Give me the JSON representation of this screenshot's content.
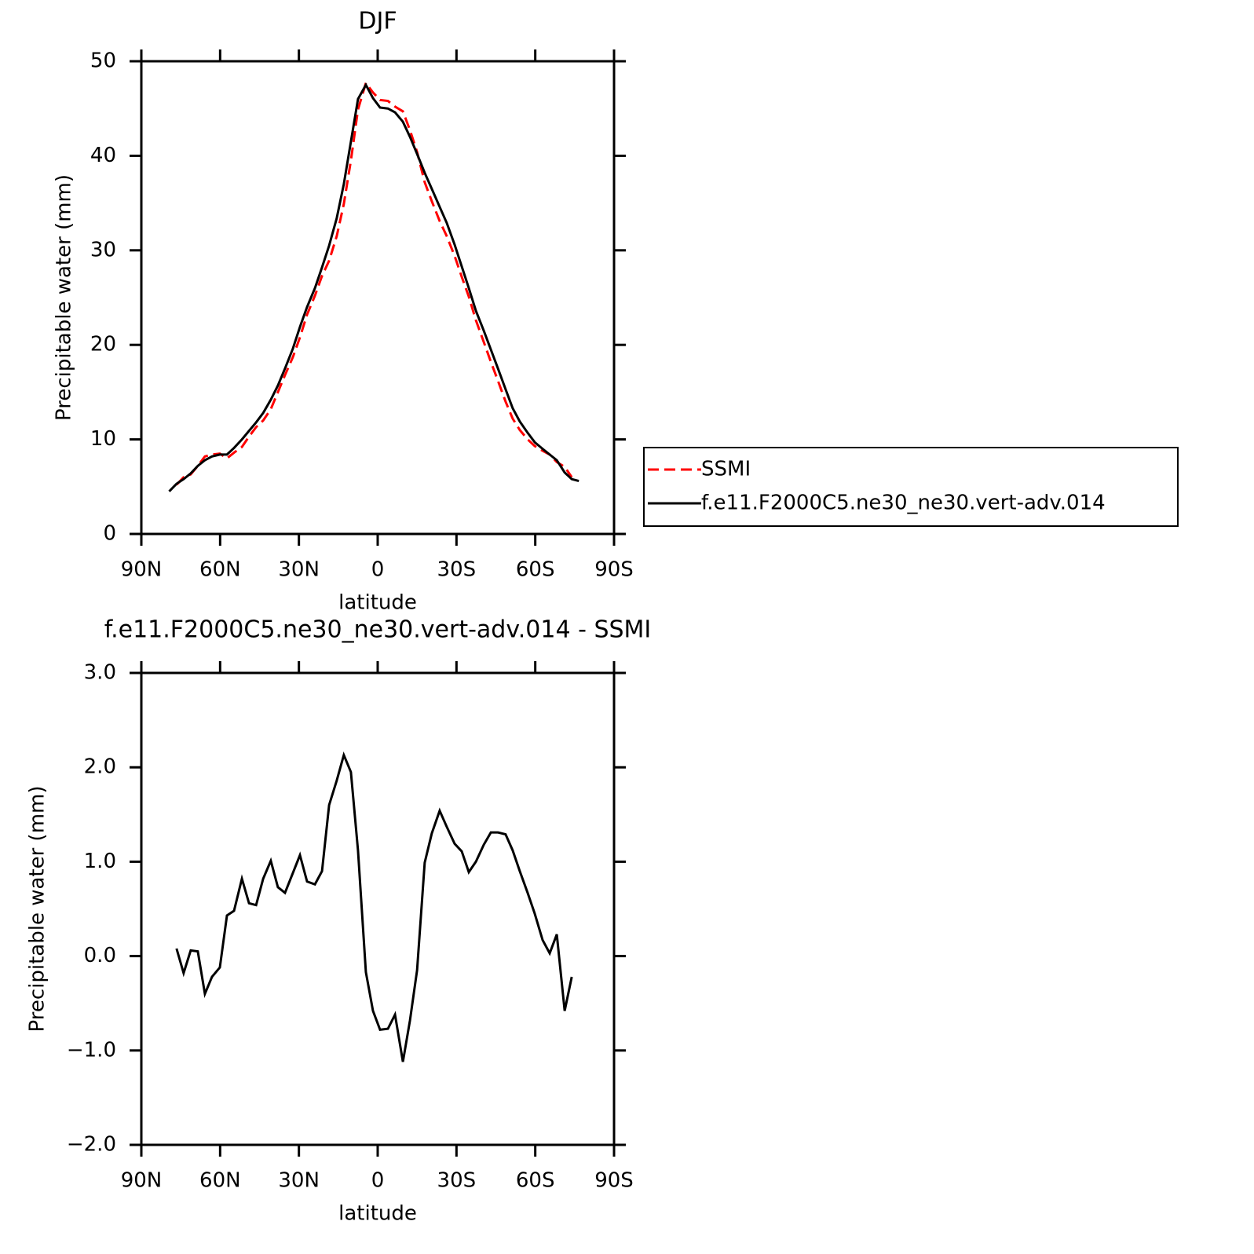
{
  "chart_data": [
    {
      "type": "line",
      "title": "DJF",
      "xlabel": "latitude",
      "ylabel": "Precipitable water (mm)",
      "x": [
        79.4,
        76.6,
        73.9,
        71.2,
        68.5,
        65.8,
        63.1,
        60.1,
        57.4,
        54.7,
        51.7,
        49.0,
        46.3,
        43.6,
        40.7,
        38.0,
        35.3,
        32.3,
        29.6,
        26.9,
        23.9,
        21.2,
        18.5,
        15.6,
        12.9,
        10.2,
        7.5,
        4.5,
        1.8,
        -0.9,
        -3.9,
        -6.6,
        -9.6,
        -12.3,
        -15.0,
        -17.9,
        -20.6,
        -23.6,
        -26.3,
        -29.3,
        -32.0,
        -34.7,
        -37.4,
        -40.4,
        -43.1,
        -45.8,
        -48.7,
        -51.4,
        -54.1,
        -57.1,
        -59.8,
        -62.8,
        -65.5,
        -68.2,
        -71.2,
        -73.9,
        -76.6
      ],
      "series": [
        {
          "name": "SSMI",
          "color": "#ff0000",
          "dashed": true,
          "values": [
            null,
            5.2,
            6.0,
            6.3,
            7.2,
            8.2,
            8.4,
            8.5,
            8.0,
            8.6,
            9.2,
            10.3,
            11.3,
            12.0,
            13.2,
            15.0,
            16.8,
            18.7,
            20.8,
            23.2,
            25.2,
            27.3,
            28.9,
            31.5,
            34.9,
            39.5,
            44.9,
            47.7,
            46.7,
            45.9,
            45.8,
            45.2,
            44.7,
            42.7,
            40.4,
            37.2,
            35.2,
            33.1,
            31.5,
            29.4,
            27.2,
            25.1,
            22.6,
            20.3,
            18.2,
            16.2,
            14.0,
            12.2,
            11.0,
            10.0,
            9.3,
            8.8,
            8.4,
            7.6,
            7.1,
            6.0,
            null
          ]
        },
        {
          "name": "f.e11.F2000C5.ne30_ne30.vert-adv.014",
          "color": "#000000",
          "dashed": false,
          "values": [
            4.5,
            5.3,
            5.8,
            6.4,
            7.2,
            7.8,
            8.2,
            8.4,
            8.4,
            9.1,
            10.0,
            10.9,
            11.8,
            12.8,
            14.2,
            15.7,
            17.5,
            19.6,
            21.9,
            24.0,
            26.0,
            28.2,
            30.5,
            33.4,
            37.0,
            41.5,
            46.0,
            47.5,
            46.1,
            45.1,
            45.0,
            44.6,
            43.6,
            42.0,
            40.2,
            38.2,
            36.5,
            34.6,
            32.9,
            30.6,
            28.3,
            26.0,
            23.6,
            21.5,
            19.5,
            17.5,
            15.3,
            13.3,
            11.9,
            10.7,
            9.7,
            9.0,
            8.4,
            7.8,
            6.5,
            5.8,
            5.6
          ]
        }
      ],
      "xlim": [
        90,
        -90
      ],
      "xticks": [
        {
          "value": 90,
          "label": "90N"
        },
        {
          "value": 60,
          "label": "60N"
        },
        {
          "value": 30,
          "label": "30N"
        },
        0,
        {
          "value": -30,
          "label": "30S"
        },
        {
          "value": -60,
          "label": "60S"
        },
        {
          "value": -90,
          "label": "90S"
        }
      ],
      "ylim": [
        0,
        50
      ],
      "yticks": [
        0,
        10,
        20,
        30,
        40,
        50
      ],
      "legend": "right"
    },
    {
      "type": "line",
      "title": "f.e11.F2000C5.ne30_ne30.vert-adv.014 - SSMI",
      "xlabel": "latitude",
      "ylabel": "Precipitable water (mm)",
      "x": [
        76.6,
        73.9,
        71.2,
        68.5,
        65.8,
        63.1,
        60.1,
        57.4,
        54.7,
        51.7,
        49.0,
        46.3,
        43.6,
        40.7,
        38.0,
        35.3,
        32.3,
        29.6,
        26.9,
        23.9,
        21.2,
        18.5,
        15.6,
        12.9,
        10.2,
        7.5,
        4.5,
        1.8,
        -0.9,
        -3.9,
        -6.6,
        -9.6,
        -12.3,
        -15.0,
        -17.9,
        -20.6,
        -23.6,
        -26.3,
        -29.3,
        -32.0,
        -34.7,
        -37.4,
        -40.4,
        -43.1,
        -45.8,
        -48.7,
        -51.4,
        -54.1,
        -57.1,
        -59.8,
        -62.8,
        -65.5,
        -68.2,
        -71.2,
        -73.9
      ],
      "series": [
        {
          "color": "#000000",
          "dashed": false,
          "values": [
            0.08,
            -0.18,
            0.06,
            0.05,
            -0.4,
            -0.22,
            -0.12,
            0.43,
            0.48,
            0.82,
            0.56,
            0.54,
            0.82,
            1.01,
            0.73,
            0.67,
            0.88,
            1.07,
            0.79,
            0.76,
            0.9,
            1.6,
            1.86,
            2.13,
            1.95,
            1.12,
            -0.17,
            -0.58,
            -0.78,
            -0.77,
            -0.62,
            -1.12,
            -0.68,
            -0.15,
            0.99,
            1.3,
            1.54,
            1.37,
            1.19,
            1.11,
            0.89,
            1.0,
            1.18,
            1.31,
            1.31,
            1.29,
            1.12,
            0.9,
            0.67,
            0.45,
            0.17,
            0.03,
            0.23,
            -0.58,
            -0.22
          ]
        }
      ],
      "xlim": [
        90,
        -90
      ],
      "xticks": [
        {
          "value": 90,
          "label": "90N"
        },
        {
          "value": 60,
          "label": "60N"
        },
        {
          "value": 30,
          "label": "30N"
        },
        0,
        {
          "value": -30,
          "label": "30S"
        },
        {
          "value": -60,
          "label": "60S"
        },
        {
          "value": -90,
          "label": "90S"
        }
      ],
      "ylim": [
        -2,
        3
      ],
      "yticks": [
        {
          "value": -2,
          "label": "−2.0"
        },
        {
          "value": -1,
          "label": "−1.0"
        },
        {
          "value": 0,
          "label": "0.0"
        },
        {
          "value": 1,
          "label": "1.0"
        },
        {
          "value": 2,
          "label": "2.0"
        },
        {
          "value": 3,
          "label": "3.0"
        }
      ]
    }
  ]
}
